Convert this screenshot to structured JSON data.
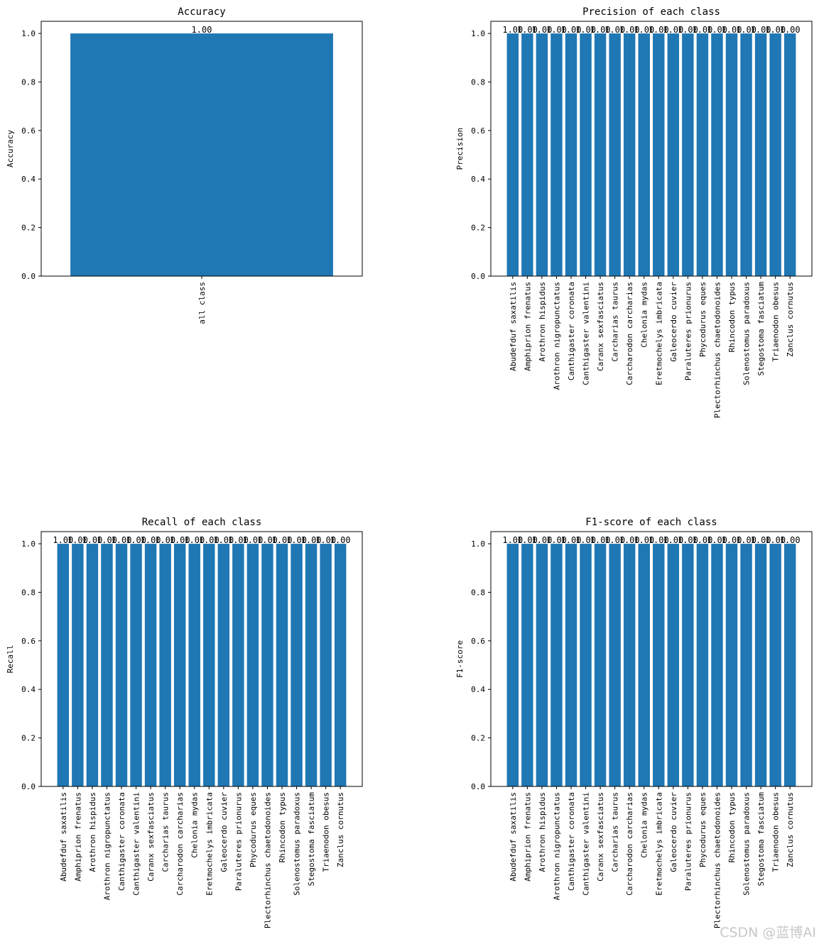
{
  "chart_data": [
    {
      "type": "bar",
      "title": "Accuracy",
      "xlabel": "",
      "ylabel": "Accuracy",
      "ylim": [
        0,
        1.05
      ],
      "yticks": [
        "0.0",
        "0.2",
        "0.4",
        "0.6",
        "0.8",
        "1.0"
      ],
      "categories": [
        "all class"
      ],
      "values": [
        1.0
      ],
      "data_labels": [
        "1.00"
      ],
      "grid": false,
      "color": "#1f77b4"
    },
    {
      "type": "bar",
      "title": "Precision of each class",
      "xlabel": "",
      "ylabel": "Precision",
      "ylim": [
        0,
        1.05
      ],
      "yticks": [
        "0.0",
        "0.2",
        "0.4",
        "0.6",
        "0.8",
        "1.0"
      ],
      "categories": [
        "Abudefduf saxatilis",
        "Amphiprion frenatus",
        "Arothron hispidus",
        "Arothron nigropunctatus",
        "Canthigaster coronata",
        "Canthigaster valentini",
        "Caranx sexfasciatus",
        "Carcharias taurus",
        "Carcharodon carcharias",
        "Chelonia mydas",
        "Eretmochelys imbricata",
        "Galeocerdo cuvier",
        "Paraluteres prionurus",
        "Phycodurus eques",
        "Plectorhinchus chaetodonoides",
        "Rhincodon typus",
        "Solenostomus paradoxus",
        "Stegostoma fasciatum",
        "Triaenodon obesus",
        "Zanclus cornutus"
      ],
      "values": [
        1.0,
        1.0,
        1.0,
        1.0,
        1.0,
        1.0,
        1.0,
        1.0,
        1.0,
        1.0,
        1.0,
        1.0,
        1.0,
        1.0,
        1.0,
        1.0,
        1.0,
        1.0,
        1.0,
        1.0
      ],
      "data_labels": [
        "1.00",
        "1.00",
        "1.00",
        "1.00",
        "1.00",
        "1.00",
        "1.00",
        "1.00",
        "1.00",
        "1.00",
        "1.00",
        "1.00",
        "1.00",
        "1.00",
        "1.00",
        "1.00",
        "1.00",
        "1.00",
        "1.00",
        "1.00"
      ],
      "grid": false,
      "color": "#1f77b4"
    },
    {
      "type": "bar",
      "title": "Recall of each class",
      "xlabel": "",
      "ylabel": "Recall",
      "ylim": [
        0,
        1.05
      ],
      "yticks": [
        "0.0",
        "0.2",
        "0.4",
        "0.6",
        "0.8",
        "1.0"
      ],
      "categories": [
        "Abudefduf saxatilis",
        "Amphiprion frenatus",
        "Arothron hispidus",
        "Arothron nigropunctatus",
        "Canthigaster coronata",
        "Canthigaster valentini",
        "Caranx sexfasciatus",
        "Carcharias taurus",
        "Carcharodon carcharias",
        "Chelonia mydas",
        "Eretmochelys imbricata",
        "Galeocerdo cuvier",
        "Paraluteres prionurus",
        "Phycodurus eques",
        "Plectorhinchus chaetodonoides",
        "Rhincodon typus",
        "Solenostomus paradoxus",
        "Stegostoma fasciatum",
        "Triaenodon obesus",
        "Zanclus cornutus"
      ],
      "values": [
        1.0,
        1.0,
        1.0,
        1.0,
        1.0,
        1.0,
        1.0,
        1.0,
        1.0,
        1.0,
        1.0,
        1.0,
        1.0,
        1.0,
        1.0,
        1.0,
        1.0,
        1.0,
        1.0,
        1.0
      ],
      "data_labels": [
        "1.00",
        "1.00",
        "1.00",
        "1.00",
        "1.00",
        "1.00",
        "1.00",
        "1.00",
        "1.00",
        "1.00",
        "1.00",
        "1.00",
        "1.00",
        "1.00",
        "1.00",
        "1.00",
        "1.00",
        "1.00",
        "1.00",
        "1.00"
      ],
      "grid": false,
      "color": "#1f77b4"
    },
    {
      "type": "bar",
      "title": "F1-score of each class",
      "xlabel": "",
      "ylabel": "F1-score",
      "ylim": [
        0,
        1.05
      ],
      "yticks": [
        "0.0",
        "0.2",
        "0.4",
        "0.6",
        "0.8",
        "1.0"
      ],
      "categories": [
        "Abudefduf saxatilis",
        "Amphiprion frenatus",
        "Arothron hispidus",
        "Arothron nigropunctatus",
        "Canthigaster coronata",
        "Canthigaster valentini",
        "Caranx sexfasciatus",
        "Carcharias taurus",
        "Carcharodon carcharias",
        "Chelonia mydas",
        "Eretmochelys imbricata",
        "Galeocerdo cuvier",
        "Paraluteres prionurus",
        "Phycodurus eques",
        "Plectorhinchus chaetodonoides",
        "Rhincodon typus",
        "Solenostomus paradoxus",
        "Stegostoma fasciatum",
        "Triaenodon obesus",
        "Zanclus cornutus"
      ],
      "values": [
        1.0,
        1.0,
        1.0,
        1.0,
        1.0,
        1.0,
        1.0,
        1.0,
        1.0,
        1.0,
        1.0,
        1.0,
        1.0,
        1.0,
        1.0,
        1.0,
        1.0,
        1.0,
        1.0,
        1.0
      ],
      "data_labels": [
        "1.00",
        "1.00",
        "1.00",
        "1.00",
        "1.00",
        "1.00",
        "1.00",
        "1.00",
        "1.00",
        "1.00",
        "1.00",
        "1.00",
        "1.00",
        "1.00",
        "1.00",
        "1.00",
        "1.00",
        "1.00",
        "1.00",
        "1.00"
      ],
      "grid": false,
      "color": "#1f77b4"
    }
  ],
  "watermark": "CSDN @蓝博AI"
}
